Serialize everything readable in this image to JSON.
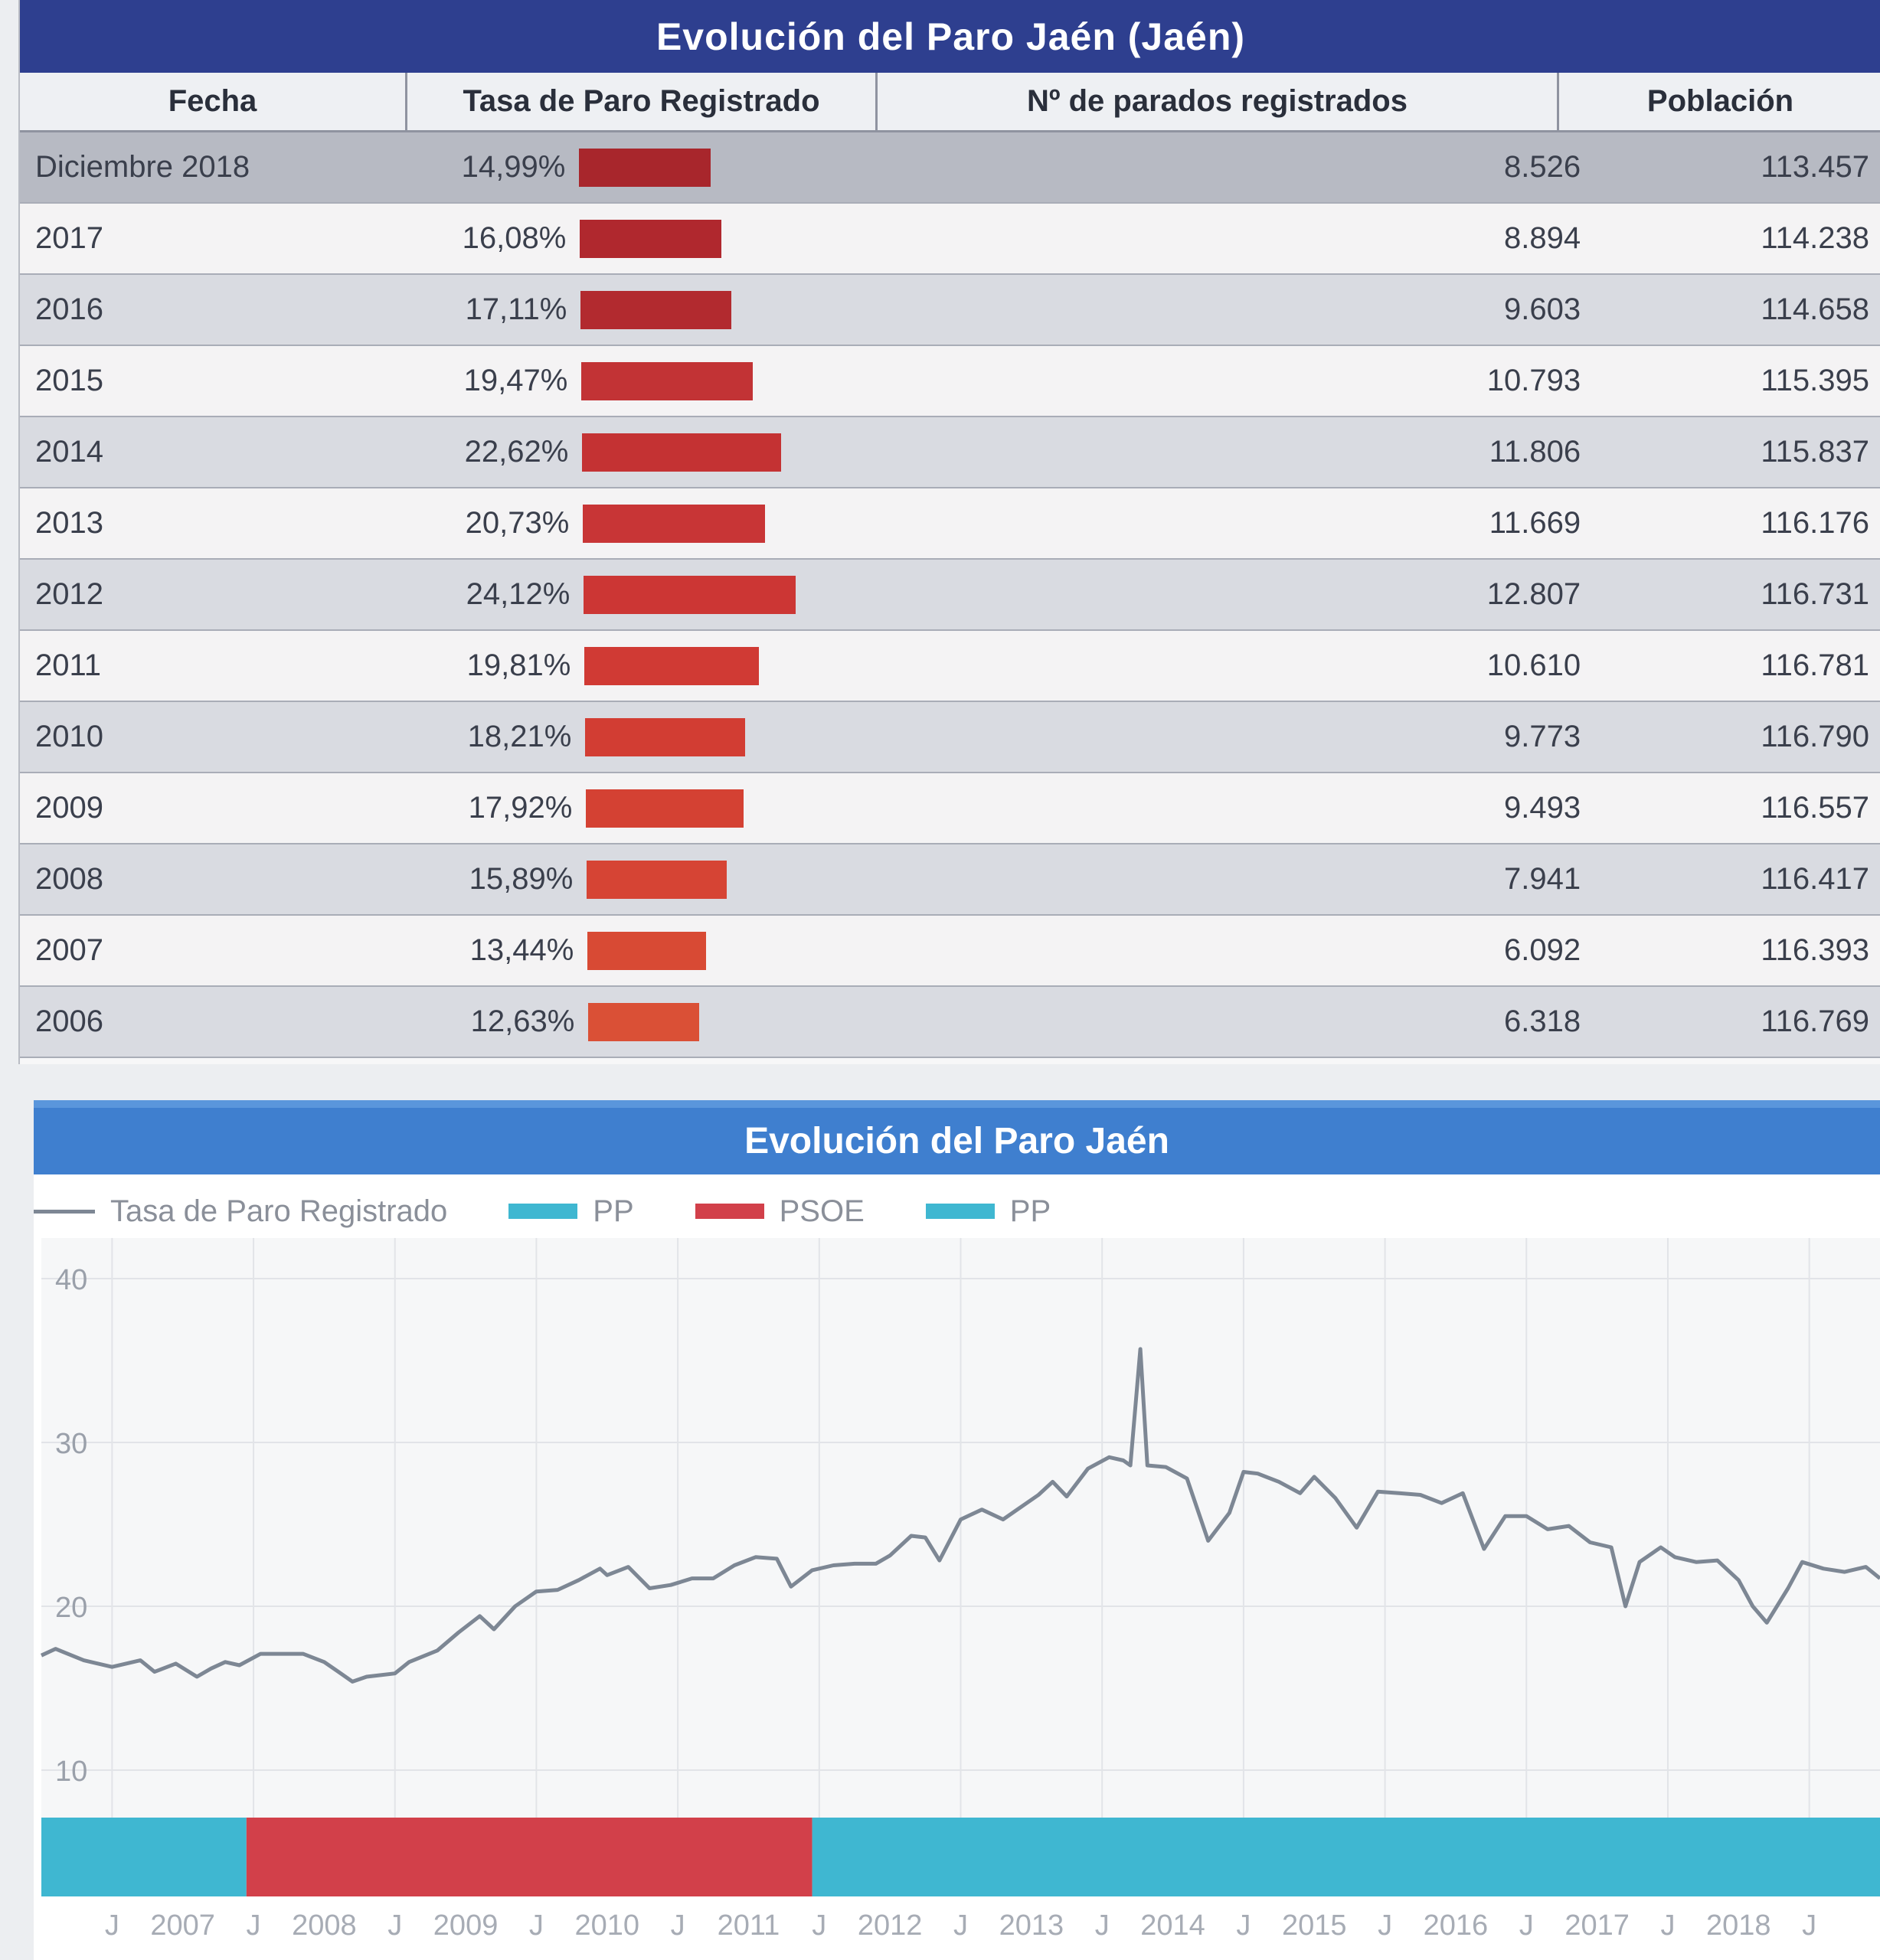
{
  "table": {
    "title": "Evolución del Paro Jaén (Jaén)",
    "headers": {
      "fecha": "Fecha",
      "tasa": "Tasa de Paro Registrado",
      "parados": "Nº de parados registrados",
      "poblacion": "Población"
    },
    "rows": [
      {
        "fecha": "Diciembre 2018",
        "tasa": "14,99%",
        "tasa_value": 14.99,
        "parados": "8.526",
        "poblacion": "113.457"
      },
      {
        "fecha": "2017",
        "tasa": "16,08%",
        "tasa_value": 16.08,
        "parados": "8.894",
        "poblacion": "114.238"
      },
      {
        "fecha": "2016",
        "tasa": "17,11%",
        "tasa_value": 17.11,
        "parados": "9.603",
        "poblacion": "114.658"
      },
      {
        "fecha": "2015",
        "tasa": "19,47%",
        "tasa_value": 19.47,
        "parados": "10.793",
        "poblacion": "115.395"
      },
      {
        "fecha": "2014",
        "tasa": "22,62%",
        "tasa_value": 22.62,
        "parados": "11.806",
        "poblacion": "115.837"
      },
      {
        "fecha": "2013",
        "tasa": "20,73%",
        "tasa_value": 20.73,
        "parados": "11.669",
        "poblacion": "116.176"
      },
      {
        "fecha": "2012",
        "tasa": "24,12%",
        "tasa_value": 24.12,
        "parados": "12.807",
        "poblacion": "116.731"
      },
      {
        "fecha": "2011",
        "tasa": "19,81%",
        "tasa_value": 19.81,
        "parados": "10.610",
        "poblacion": "116.781"
      },
      {
        "fecha": "2010",
        "tasa": "18,21%",
        "tasa_value": 18.21,
        "parados": "9.773",
        "poblacion": "116.790"
      },
      {
        "fecha": "2009",
        "tasa": "17,92%",
        "tasa_value": 17.92,
        "parados": "9.493",
        "poblacion": "116.557"
      },
      {
        "fecha": "2008",
        "tasa": "15,89%",
        "tasa_value": 15.89,
        "parados": "7.941",
        "poblacion": "116.417"
      },
      {
        "fecha": "2007",
        "tasa": "13,44%",
        "tasa_value": 13.44,
        "parados": "6.092",
        "poblacion": "116.393"
      },
      {
        "fecha": "2006",
        "tasa": "12,63%",
        "tasa_value": 12.63,
        "parados": "6.318",
        "poblacion": "116.769"
      }
    ],
    "bar_colors": [
      "#a8262c",
      "#b0282e",
      "#b22a2f",
      "#c23335",
      "#c43233",
      "#c83536",
      "#cc3634",
      "#d03a34",
      "#d23d33",
      "#d44133",
      "#d64434",
      "#d84a34",
      "#da5036"
    ]
  },
  "chart_data": {
    "type": "line",
    "title": "Evolución del Paro Jaén",
    "legend": [
      {
        "label": "Tasa de Paro Registrado",
        "kind": "line",
        "color": "#7d8794"
      },
      {
        "label": "PP",
        "kind": "swatch",
        "color": "#3fb7d1"
      },
      {
        "label": "PSOE",
        "kind": "swatch",
        "color": "#d2404a"
      },
      {
        "label": "PP",
        "kind": "swatch",
        "color": "#3fb7d1"
      }
    ],
    "yticks": [
      "10",
      "20",
      "30",
      "40"
    ],
    "ylim": [
      10,
      40
    ],
    "xlim": [
      2006.0,
      2019.0
    ],
    "xticks": [
      {
        "label": "J",
        "x": 2006.5
      },
      {
        "label": "2007",
        "x": 2007.0
      },
      {
        "label": "J",
        "x": 2007.5
      },
      {
        "label": "2008",
        "x": 2008.0
      },
      {
        "label": "J",
        "x": 2008.5
      },
      {
        "label": "2009",
        "x": 2009.0
      },
      {
        "label": "J",
        "x": 2009.5
      },
      {
        "label": "2010",
        "x": 2010.0
      },
      {
        "label": "J",
        "x": 2010.5
      },
      {
        "label": "2011",
        "x": 2011.0
      },
      {
        "label": "J",
        "x": 2011.5
      },
      {
        "label": "2012",
        "x": 2012.0
      },
      {
        "label": "J",
        "x": 2012.5
      },
      {
        "label": "2013",
        "x": 2013.0
      },
      {
        "label": "J",
        "x": 2013.5
      },
      {
        "label": "2014",
        "x": 2014.0
      },
      {
        "label": "J",
        "x": 2014.5
      },
      {
        "label": "2015",
        "x": 2015.0
      },
      {
        "label": "J",
        "x": 2015.5
      },
      {
        "label": "2016",
        "x": 2016.0
      },
      {
        "label": "J",
        "x": 2016.5
      },
      {
        "label": "2017",
        "x": 2017.0
      },
      {
        "label": "J",
        "x": 2017.5
      },
      {
        "label": "2018",
        "x": 2018.0
      },
      {
        "label": "J",
        "x": 2018.5
      }
    ],
    "periods": [
      {
        "label": "PP",
        "from": 2006.0,
        "to": 2007.45,
        "color": "#3fb7d1"
      },
      {
        "label": "PSOE",
        "from": 2007.45,
        "to": 2011.45,
        "color": "#d2404a"
      },
      {
        "label": "PP",
        "from": 2011.45,
        "to": 2019.0,
        "color": "#3fb7d1"
      }
    ],
    "series": [
      {
        "name": "Tasa de Paro Registrado",
        "color": "#7d8794",
        "points": [
          [
            2006.0,
            17.0
          ],
          [
            2006.1,
            17.4
          ],
          [
            2006.3,
            16.7
          ],
          [
            2006.5,
            16.3
          ],
          [
            2006.7,
            16.7
          ],
          [
            2006.8,
            16.0
          ],
          [
            2006.95,
            16.5
          ],
          [
            2007.1,
            15.7
          ],
          [
            2007.2,
            16.2
          ],
          [
            2007.3,
            16.6
          ],
          [
            2007.4,
            16.4
          ],
          [
            2007.55,
            17.1
          ],
          [
            2007.7,
            17.1
          ],
          [
            2007.85,
            17.1
          ],
          [
            2008.0,
            16.6
          ],
          [
            2008.1,
            16.0
          ],
          [
            2008.2,
            15.4
          ],
          [
            2008.3,
            15.7
          ],
          [
            2008.5,
            15.9
          ],
          [
            2008.6,
            16.6
          ],
          [
            2008.8,
            17.3
          ],
          [
            2008.95,
            18.4
          ],
          [
            2009.1,
            19.4
          ],
          [
            2009.2,
            18.6
          ],
          [
            2009.35,
            20.0
          ],
          [
            2009.5,
            20.9
          ],
          [
            2009.65,
            21.0
          ],
          [
            2009.8,
            21.6
          ],
          [
            2009.95,
            22.3
          ],
          [
            2010.0,
            21.9
          ],
          [
            2010.15,
            22.4
          ],
          [
            2010.3,
            21.1
          ],
          [
            2010.45,
            21.3
          ],
          [
            2010.6,
            21.7
          ],
          [
            2010.75,
            21.7
          ],
          [
            2010.9,
            22.5
          ],
          [
            2011.05,
            23.0
          ],
          [
            2011.2,
            22.9
          ],
          [
            2011.3,
            21.2
          ],
          [
            2011.45,
            22.2
          ],
          [
            2011.6,
            22.5
          ],
          [
            2011.75,
            22.6
          ],
          [
            2011.9,
            22.6
          ],
          [
            2012.0,
            23.1
          ],
          [
            2012.15,
            24.3
          ],
          [
            2012.25,
            24.2
          ],
          [
            2012.35,
            22.8
          ],
          [
            2012.5,
            25.3
          ],
          [
            2012.65,
            25.9
          ],
          [
            2012.8,
            25.3
          ],
          [
            2012.9,
            25.9
          ],
          [
            2013.05,
            26.8
          ],
          [
            2013.15,
            27.6
          ],
          [
            2013.25,
            26.7
          ],
          [
            2013.4,
            28.4
          ],
          [
            2013.55,
            29.1
          ],
          [
            2013.65,
            28.9
          ],
          [
            2013.7,
            28.6
          ],
          [
            2013.77,
            35.7
          ],
          [
            2013.82,
            28.6
          ],
          [
            2013.95,
            28.5
          ],
          [
            2014.1,
            27.8
          ],
          [
            2014.25,
            24.0
          ],
          [
            2014.4,
            25.7
          ],
          [
            2014.5,
            28.2
          ],
          [
            2014.6,
            28.1
          ],
          [
            2014.75,
            27.6
          ],
          [
            2014.9,
            26.9
          ],
          [
            2015.0,
            27.9
          ],
          [
            2015.15,
            26.6
          ],
          [
            2015.3,
            24.8
          ],
          [
            2015.45,
            27.0
          ],
          [
            2015.6,
            26.9
          ],
          [
            2015.75,
            26.8
          ],
          [
            2015.9,
            26.3
          ],
          [
            2016.05,
            26.9
          ],
          [
            2016.2,
            23.5
          ],
          [
            2016.35,
            25.5
          ],
          [
            2016.5,
            25.5
          ],
          [
            2016.65,
            24.7
          ],
          [
            2016.8,
            24.9
          ],
          [
            2016.95,
            23.9
          ],
          [
            2017.1,
            23.6
          ],
          [
            2017.2,
            20.0
          ],
          [
            2017.3,
            22.7
          ],
          [
            2017.45,
            23.6
          ],
          [
            2017.55,
            23.0
          ],
          [
            2017.7,
            22.7
          ],
          [
            2017.85,
            22.8
          ],
          [
            2018.0,
            21.6
          ],
          [
            2018.1,
            20.0
          ],
          [
            2018.2,
            19.0
          ],
          [
            2018.35,
            21.1
          ],
          [
            2018.45,
            22.7
          ],
          [
            2018.6,
            22.3
          ],
          [
            2018.75,
            22.1
          ],
          [
            2018.9,
            22.4
          ],
          [
            2019.0,
            21.7
          ]
        ]
      }
    ]
  }
}
